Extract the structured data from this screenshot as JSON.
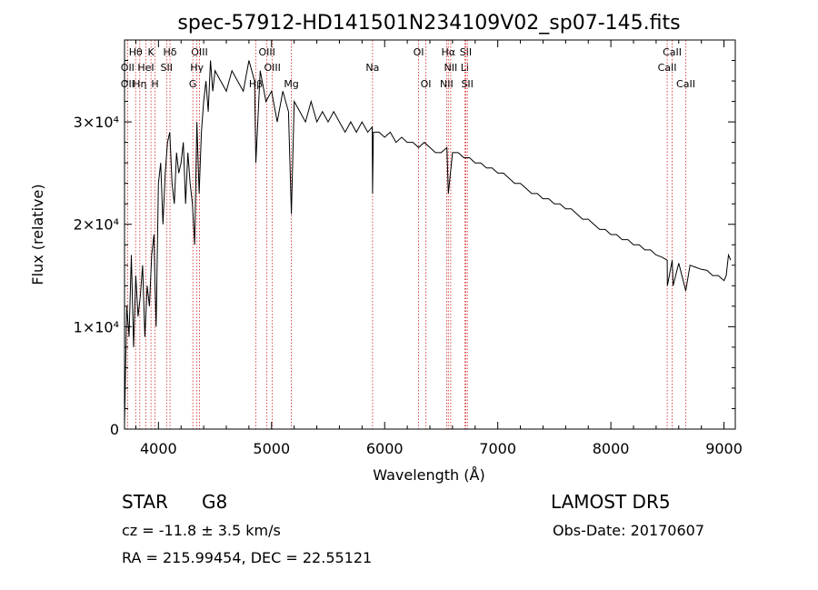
{
  "chart_data": {
    "type": "line",
    "title": "spec-57912-HD141501N234109V02_sp07-145.fits",
    "xlabel": "Wavelength (Å)",
    "ylabel": "Flux (relative)",
    "xlim": [
      3700,
      9100
    ],
    "ylim": [
      0,
      38000
    ],
    "x_ticks": [
      4000,
      5000,
      6000,
      7000,
      8000,
      9000
    ],
    "y_ticks": [
      {
        "value": 0,
        "label": "0"
      },
      {
        "value": 10000,
        "label": "1×10⁴"
      },
      {
        "value": 20000,
        "label": "2×10⁴"
      },
      {
        "value": 30000,
        "label": "3×10⁴"
      }
    ],
    "series": [
      {
        "x": [
          3700,
          3720,
          3740,
          3760,
          3780,
          3800,
          3820,
          3840,
          3860,
          3880,
          3900,
          3920,
          3940,
          3960,
          3970,
          3980,
          4000,
          4020,
          4040,
          4060,
          4080,
          4100,
          4120,
          4140,
          4160,
          4180,
          4200,
          4220,
          4240,
          4260,
          4280,
          4300,
          4320,
          4340,
          4360,
          4380,
          4400,
          4420,
          4440,
          4460,
          4480,
          4500,
          4550,
          4600,
          4650,
          4700,
          4750,
          4800,
          4850,
          4861,
          4900,
          4950,
          5000,
          5050,
          5100,
          5150,
          5175,
          5200,
          5250,
          5300,
          5350,
          5400,
          5450,
          5500,
          5550,
          5600,
          5650,
          5700,
          5750,
          5800,
          5850,
          5890,
          5893,
          5900,
          5950,
          6000,
          6050,
          6100,
          6150,
          6200,
          6250,
          6300,
          6350,
          6400,
          6450,
          6500,
          6550,
          6563,
          6600,
          6650,
          6700,
          6750,
          6800,
          6850,
          6900,
          6950,
          7000,
          7050,
          7100,
          7150,
          7200,
          7250,
          7300,
          7350,
          7400,
          7450,
          7500,
          7550,
          7600,
          7650,
          7700,
          7750,
          7800,
          7850,
          7900,
          7950,
          8000,
          8050,
          8100,
          8150,
          8200,
          8250,
          8300,
          8350,
          8400,
          8450,
          8498,
          8500,
          8542,
          8550,
          8600,
          8662,
          8700,
          8750,
          8800,
          8850,
          8900,
          8950,
          9000,
          9020,
          9040,
          9060
        ],
        "y": [
          500,
          12000,
          9000,
          17000,
          8000,
          15000,
          11000,
          13000,
          16000,
          9000,
          14000,
          12000,
          17000,
          19000,
          14000,
          10000,
          24000,
          26000,
          20000,
          25000,
          28000,
          29000,
          24000,
          22000,
          27000,
          25000,
          26000,
          28000,
          22000,
          27000,
          24000,
          22000,
          18000,
          30000,
          23000,
          29000,
          32000,
          34000,
          31000,
          36000,
          33000,
          35000,
          34000,
          33000,
          35000,
          34000,
          33000,
          36000,
          34000,
          26000,
          35000,
          32000,
          33000,
          30000,
          33000,
          31000,
          21000,
          32000,
          31000,
          30000,
          32000,
          30000,
          31000,
          30000,
          31000,
          30000,
          29000,
          30000,
          29000,
          30000,
          29000,
          29500,
          23000,
          29000,
          29000,
          28500,
          29000,
          28000,
          28500,
          28000,
          28000,
          27500,
          28000,
          27500,
          27000,
          27000,
          27500,
          23000,
          27000,
          27000,
          26500,
          26500,
          26000,
          26000,
          25500,
          25500,
          25000,
          25000,
          24500,
          24000,
          24000,
          23500,
          23000,
          23000,
          22500,
          22500,
          22000,
          22000,
          21500,
          21500,
          21000,
          20500,
          20500,
          20000,
          19500,
          19500,
          19000,
          19000,
          18500,
          18500,
          18000,
          18000,
          17500,
          17500,
          17000,
          16800,
          16500,
          14000,
          16500,
          14000,
          16200,
          13500,
          16000,
          15800,
          15600,
          15500,
          15000,
          15000,
          14500,
          15000,
          17000,
          16500
        ]
      }
    ],
    "line_markers": [
      {
        "label": "Hθ",
        "x": 3798,
        "row": 1
      },
      {
        "label": "K",
        "x": 3934,
        "row": 1
      },
      {
        "label": "Hδ",
        "x": 4102,
        "row": 1
      },
      {
        "label": "OIII",
        "x": 4363,
        "row": 1
      },
      {
        "label": "OIII",
        "x": 4959,
        "row": 1
      },
      {
        "label": "Na",
        "x": 5893,
        "row": 2
      },
      {
        "label": "OI",
        "x": 6300,
        "row": 1
      },
      {
        "label": "Hα",
        "x": 6563,
        "row": 1
      },
      {
        "label": "SII",
        "x": 6717,
        "row": 1
      },
      {
        "label": "CaII",
        "x": 8542,
        "row": 1
      },
      {
        "label": "OII",
        "x": 3727,
        "row": 2
      },
      {
        "label": "HeI",
        "x": 3889,
        "row": 2
      },
      {
        "label": "SII",
        "x": 4072,
        "row": 2
      },
      {
        "label": "Hγ",
        "x": 4340,
        "row": 2
      },
      {
        "label": "OIII",
        "x": 5007,
        "row": 2
      },
      {
        "label": "NII",
        "x": 6584,
        "row": 2
      },
      {
        "label": "Li",
        "x": 6708,
        "row": 2
      },
      {
        "label": "CaII",
        "x": 8498,
        "row": 2
      },
      {
        "label": "OII",
        "x": 3727,
        "row": 3
      },
      {
        "label": "Hη",
        "x": 3835,
        "row": 3
      },
      {
        "label": "H",
        "x": 3969,
        "row": 3
      },
      {
        "label": "G",
        "x": 4304,
        "row": 3
      },
      {
        "label": "Hβ",
        "x": 4861,
        "row": 3
      },
      {
        "label": "Mg",
        "x": 5175,
        "row": 3
      },
      {
        "label": "OI",
        "x": 6364,
        "row": 3
      },
      {
        "label": "NII",
        "x": 6548,
        "row": 3
      },
      {
        "label": "SII",
        "x": 6731,
        "row": 3
      },
      {
        "label": "CaII",
        "x": 8662,
        "row": 3
      }
    ]
  },
  "footer": {
    "object_class": "STAR",
    "subclass": "G8",
    "survey": "LAMOST DR5",
    "cz": "cz = -11.8 ± 3.5 km/s",
    "obs_date": "Obs-Date: 20170607",
    "coords": "RA = 215.99454, DEC =  22.55121"
  }
}
